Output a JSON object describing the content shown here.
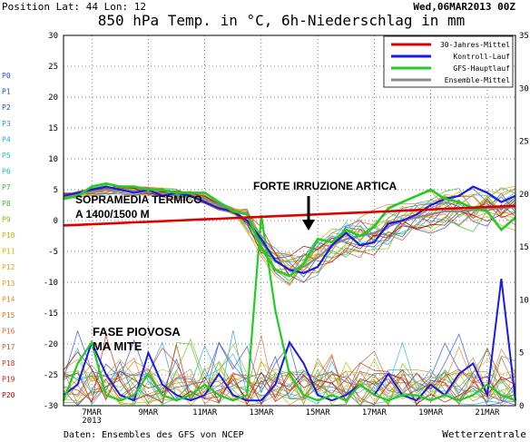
{
  "header": {
    "position": "Position  Lat: 44 Lon: 12",
    "date": "Wed,06MAR2013 00Z",
    "title": "850 hPa Temp. in °C, 6h-Niederschlag in mm"
  },
  "footer": {
    "source": "Daten: Ensembles des GFS von NCEP",
    "brand": "Wetterzentrale"
  },
  "annotations": {
    "warm_line1": "SOPRAMEDIA TERMICO",
    "warm_line2": "A 1400/1500 M",
    "cold": "FORTE IRRUZIONE ARTICA",
    "rain_line1": "FASE PIOVOSA",
    "rain_line2": "MA MITE"
  },
  "chart_data": {
    "type": "line",
    "title": "850 hPa Temp. in °C, 6h-Niederschlag in mm",
    "x_axis": {
      "unit": "day of March 2013",
      "range": [
        6.0,
        22.0
      ],
      "tick_labels": [
        "7MAR\n2013",
        "9MAR",
        "11MAR",
        "13MAR",
        "15MAR",
        "17MAR",
        "19MAR",
        "21MAR"
      ],
      "tick_values": [
        7,
        9,
        11,
        13,
        15,
        17,
        19,
        21
      ]
    },
    "y_left": {
      "label": "850 hPa Temp. °C",
      "range": [
        -30,
        30
      ],
      "ticks": [
        30,
        25,
        20,
        15,
        10,
        5,
        0,
        -5,
        -10,
        -15,
        -20,
        -25,
        -30
      ]
    },
    "y_right": {
      "label": "6h-Niederschlag mm",
      "range": [
        0,
        35
      ],
      "ticks": [
        35,
        30,
        25,
        20,
        15,
        10,
        5,
        0
      ]
    },
    "grid": true,
    "legend_position": "top-right",
    "legend": [
      {
        "name": "30-Jahres-Mittel",
        "color": "#dd0000"
      },
      {
        "name": "Kontroll-Lauf",
        "color": "#1a1ae6"
      },
      {
        "name": "GFS-Hauptlauf",
        "color": "#22cc22"
      },
      {
        "name": "Ensemble-Mittel",
        "color": "#888888"
      }
    ],
    "members": [
      "P0",
      "P1",
      "P2",
      "P3",
      "P4",
      "P5",
      "P6",
      "P7",
      "P8",
      "P9",
      "P10",
      "P11",
      "P12",
      "P13",
      "P14",
      "P15",
      "P16",
      "P17",
      "P18",
      "P19",
      "P20"
    ],
    "member_colors": [
      "#2a4ad0",
      "#2a4ad0",
      "#2a4ad0",
      "#2299dd",
      "#22aadd",
      "#22bbcc",
      "#22bb99",
      "#33bb44",
      "#44bb22",
      "#77bb11",
      "#aabb00",
      "#ccbb00",
      "#ddaa00",
      "#dd9911",
      "#dd8822",
      "#dd7722",
      "#dd6633",
      "#cc5533",
      "#cc3322",
      "#bb2211",
      "#aa0000"
    ],
    "main_series_temp": {
      "x": [
        6.0,
        6.5,
        7.0,
        7.5,
        8.0,
        8.5,
        9.0,
        9.5,
        10.0,
        10.5,
        11.0,
        11.5,
        12.0,
        12.5,
        13.0,
        13.5,
        14.0,
        14.5,
        15.0,
        15.5,
        16.0,
        16.5,
        17.0,
        17.5,
        18.0,
        18.5,
        19.0,
        19.5,
        20.0,
        20.5,
        21.0,
        21.5,
        22.0
      ],
      "climate_mean": [
        -0.8,
        -0.7,
        -0.6,
        -0.5,
        -0.4,
        -0.3,
        -0.2,
        -0.1,
        0.0,
        0.1,
        0.2,
        0.3,
        0.4,
        0.5,
        0.6,
        0.7,
        0.8,
        0.9,
        1.0,
        1.1,
        1.2,
        1.3,
        1.4,
        1.5,
        1.6,
        1.7,
        1.8,
        1.9,
        2.0,
        2.1,
        2.2,
        2.3,
        2.4
      ],
      "control": [
        4.0,
        4.5,
        5.0,
        5.5,
        5.0,
        4.5,
        5.0,
        4.0,
        4.5,
        4.0,
        3.0,
        2.0,
        1.5,
        0.0,
        -3.0,
        -6.5,
        -8.0,
        -8.5,
        -7.5,
        -4.0,
        -2.0,
        -4.0,
        -3.5,
        -0.5,
        0.0,
        1.0,
        2.5,
        3.5,
        4.0,
        5.5,
        4.5,
        3.0,
        4.0
      ],
      "gfs_main": [
        3.5,
        4.0,
        5.5,
        6.0,
        5.5,
        5.5,
        5.0,
        5.0,
        4.5,
        4.5,
        4.5,
        3.0,
        1.5,
        1.0,
        -4.5,
        -8.0,
        -9.0,
        -7.0,
        -3.0,
        -3.5,
        -1.5,
        -2.5,
        -1.0,
        2.0,
        3.0,
        4.0,
        5.0,
        3.5,
        3.0,
        2.0,
        1.5,
        -1.5,
        0.5
      ],
      "ensemble_mean": [
        4.0,
        4.3,
        4.7,
        5.0,
        5.0,
        4.8,
        4.6,
        4.4,
        4.2,
        4.0,
        3.5,
        2.5,
        1.5,
        0.0,
        -3.5,
        -6.5,
        -8.0,
        -7.5,
        -6.0,
        -4.0,
        -3.0,
        -2.5,
        -2.0,
        -1.0,
        0.0,
        0.5,
        1.0,
        1.5,
        1.5,
        1.8,
        2.0,
        2.0,
        2.2
      ]
    },
    "main_series_precip": {
      "x": [
        6.0,
        6.5,
        7.0,
        7.5,
        8.0,
        8.5,
        9.0,
        9.5,
        10.0,
        10.5,
        11.0,
        11.5,
        12.0,
        12.5,
        13.0,
        13.5,
        14.0,
        14.5,
        15.0,
        15.5,
        16.0,
        16.5,
        17.0,
        17.5,
        18.0,
        18.5,
        19.0,
        19.5,
        20.0,
        20.5,
        21.0,
        21.5,
        22.0
      ],
      "control": [
        1,
        2,
        6,
        3,
        1,
        0.5,
        5,
        2,
        1,
        0.5,
        1,
        3,
        1,
        0.5,
        0.5,
        2,
        6,
        4,
        1,
        0.5,
        1,
        2,
        1,
        3,
        1,
        0.5,
        2,
        1,
        3,
        4,
        1,
        12,
        0.5
      ],
      "gfs_main": [
        0.5,
        4,
        6,
        1,
        0.5,
        1,
        3,
        1,
        0.5,
        1,
        2,
        1,
        0.5,
        1,
        18,
        9,
        3,
        1,
        0.5,
        1,
        0.5,
        2,
        1,
        0.5,
        1,
        1,
        0.5,
        1,
        0.5,
        1,
        2,
        1,
        0.5
      ]
    }
  }
}
